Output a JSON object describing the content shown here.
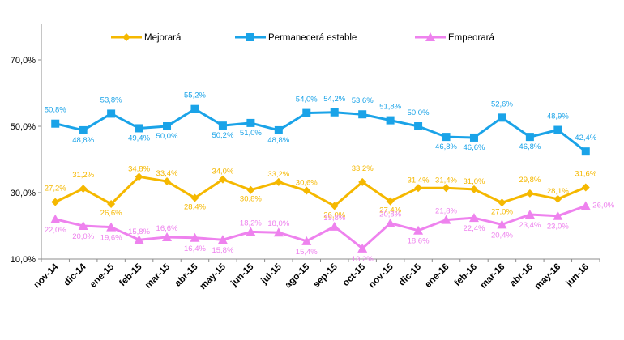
{
  "chart_data": {
    "type": "line",
    "categories": [
      "nov-14",
      "dic-14",
      "ene-15",
      "feb-15",
      "mar-15",
      "abr-15",
      "may-15",
      "jun-15",
      "jul-15",
      "ago-15",
      "sep-15",
      "oct-15",
      "nov-15",
      "dic-15",
      "ene-16",
      "feb-16",
      "mar-16",
      "abr-16",
      "may-16",
      "jun-16"
    ],
    "ylim": [
      10,
      80
    ],
    "yticks": [
      10,
      30,
      50,
      70
    ],
    "ytick_labels": [
      "10,0%",
      "30,0%",
      "50,0%",
      "70,0%"
    ],
    "legend": "top-center",
    "grid": false,
    "series": [
      {
        "name": "Mejorará",
        "color": "#F5B800",
        "marker": "diamond",
        "values": [
          27.2,
          31.2,
          26.6,
          34.8,
          33.4,
          28.4,
          34.0,
          30.8,
          33.2,
          30.6,
          26.0,
          33.2,
          27.4,
          31.4,
          31.4,
          31.0,
          27.0,
          29.8,
          28.1,
          31.6
        ],
        "labels": [
          "27,2%",
          "31,2%",
          "26,6%",
          "34,8%",
          "33,4%",
          "28,4%",
          "34,0%",
          "30,8%",
          "33,2%",
          "30,6%",
          "26,0%",
          "33,2%",
          "27,4%",
          "31,4%",
          "31,4%",
          "31,0%",
          "27,0%",
          "29,8%",
          "28,1%",
          "31,6%"
        ]
      },
      {
        "name": "Permanecerá estable",
        "color": "#1AA3E8",
        "marker": "square",
        "values": [
          50.8,
          48.8,
          53.8,
          49.4,
          50.0,
          55.2,
          50.2,
          51.0,
          48.8,
          54.0,
          54.2,
          53.6,
          51.8,
          50.0,
          46.8,
          46.6,
          52.6,
          46.8,
          48.9,
          42.4
        ],
        "labels": [
          "50,8%",
          "48,8%",
          "53,8%",
          "49,4%",
          "50,0%",
          "55,2%",
          "50,2%",
          "51,0%",
          "48,8%",
          "54,0%",
          "54,2%",
          "53,6%",
          "51,8%",
          "50,0%",
          "46,8%",
          "46,6%",
          "52,6%",
          "46,8%",
          "48,9%",
          "42,4%"
        ]
      },
      {
        "name": "Empeorará",
        "color": "#EE82EE",
        "marker": "triangle",
        "values": [
          22.0,
          20.0,
          19.6,
          15.8,
          16.6,
          16.4,
          15.8,
          18.2,
          18.0,
          15.4,
          19.8,
          13.2,
          20.8,
          18.6,
          21.8,
          22.4,
          20.4,
          23.4,
          23.0,
          26.0
        ],
        "labels": [
          "22,0%",
          "20,0%",
          "19,6%",
          "15,8%",
          "16,6%",
          "16,4%",
          "15,8%",
          "18,2%",
          "18,0%",
          "15,4%",
          "19,8%",
          "13,2%",
          "20,8%",
          "18,6%",
          "21,8%",
          "22,4%",
          "20,4%",
          "23,4%",
          "23,0%",
          "26,0%"
        ]
      }
    ]
  }
}
